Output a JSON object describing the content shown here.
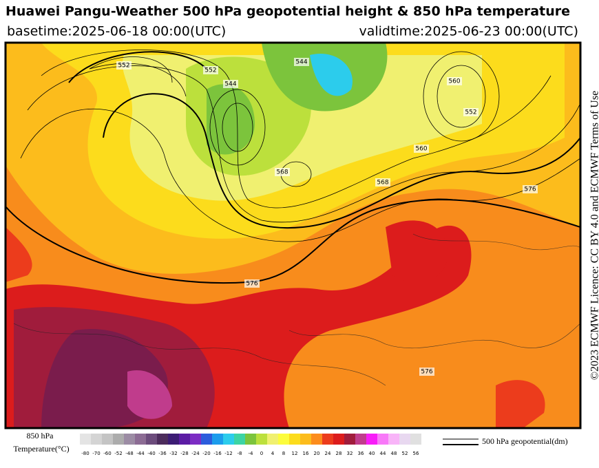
{
  "header": {
    "title": "Huawei Pangu-Weather 500 hPa geopotential height & 850 hPa temperature",
    "basetime": "basetime:2025-06-18 00:00(UTC)",
    "validtime": "validtime:2025-06-23 00:00(UTC)"
  },
  "side_note": "©2023 ECMWF Licence: CC BY 4.0 and ECMWF Terms of Use",
  "contour_labels": [
    "552",
    "544",
    "560",
    "552",
    "544",
    "576",
    "568",
    "560",
    "552",
    "576",
    "568",
    "576"
  ],
  "legend": {
    "label_line1": "850 hPa",
    "label_line2": "Temperature(°C)",
    "ticks": [
      "-80",
      "-70",
      "-60",
      "-52",
      "-48",
      "-44",
      "-40",
      "-36",
      "-32",
      "-28",
      "-24",
      "-20",
      "-16",
      "-12",
      "-8",
      "-4",
      "0",
      "4",
      "8",
      "12",
      "16",
      "20",
      "24",
      "28",
      "32",
      "36",
      "40",
      "44",
      "48",
      "52",
      "56"
    ],
    "colors": [
      "#e4e4e4",
      "#d4d4d4",
      "#c4c4c4",
      "#acacac",
      "#9c8ca4",
      "#8c6c94",
      "#6c4c7c",
      "#4c2c5c",
      "#3c1c74",
      "#5c1ca4",
      "#7c2cc4",
      "#2c5cdc",
      "#1c9cec",
      "#2cccec",
      "#3cd4a4",
      "#7cc43c",
      "#bce03c",
      "#f0f070",
      "#fcfc3c",
      "#fcdc1c",
      "#fcbc1c",
      "#fc8c1c",
      "#ec3c1c",
      "#dc1c1c",
      "#a01c3c",
      "#c03c8c",
      "#f81cf8",
      "#f878f8",
      "#f8b4f8",
      "#e8d8f0",
      "#e0e0e0"
    ],
    "contour_label": "500 hPa geopotential(dm)"
  }
}
